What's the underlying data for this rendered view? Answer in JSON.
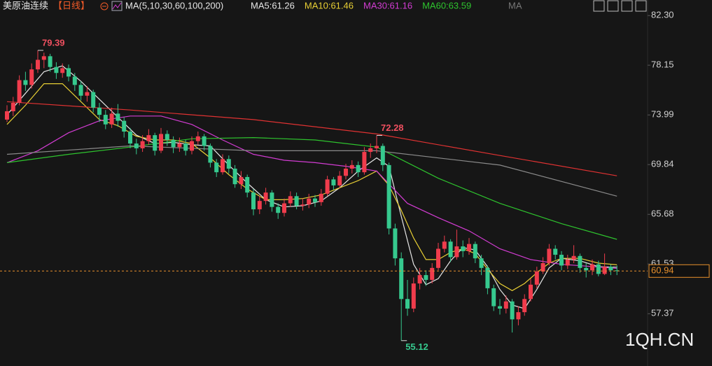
{
  "chart_data": {
    "type": "candlestick",
    "header": {
      "symbol": "美原油连续",
      "period": "【日线】",
      "ma_params": "MA(5,10,30,60,100,200)",
      "extra": "MA"
    },
    "watermark": "1QH.CN",
    "up_color": "#f03c4c",
    "down_color": "#36c98e",
    "ylim": [
      53.0,
      83.6
    ],
    "yticks": [
      {
        "value": 82.3,
        "label": "82.30"
      },
      78.15,
      73.99,
      69.84,
      65.68,
      61.53,
      57.37
    ],
    "open": [
      73.6,
      74.3,
      75.0,
      76.9,
      76.5,
      77.8,
      78.6,
      78.9,
      78.0,
      77.5,
      77.9,
      77.2,
      76.5,
      75.6,
      75.9,
      74.6,
      74.0,
      73.2,
      74.1,
      73.5,
      72.6,
      71.6,
      71.2,
      71.8,
      72.3,
      71.0,
      72.4,
      71.9,
      71.3,
      71.6,
      71.0,
      71.8,
      72.2,
      71.4,
      70.0,
      69.2,
      70.3,
      69.5,
      68.2,
      68.8,
      67.5,
      66.1,
      66.8,
      67.5,
      66.3,
      65.8,
      66.6,
      67.2,
      66.4,
      66.5,
      67.0,
      66.7,
      67.4,
      68.6,
      68.1,
      68.9,
      69.5,
      69.8,
      69.2,
      70.9,
      71.2,
      71.4,
      69.8,
      64.5,
      62.0,
      58.6,
      57.8,
      59.9,
      60.6,
      60.2,
      61.2,
      62.8,
      63.4,
      62.1,
      63.0,
      62.6,
      63.2,
      62.0,
      61.2,
      59.5,
      58.0,
      57.8,
      58.4,
      56.9,
      57.5,
      58.6,
      59.8,
      60.9,
      61.6,
      62.8,
      62.3,
      61.4,
      61.9,
      62.2,
      61.2,
      61.0,
      61.5,
      60.7,
      61.3,
      61.0
    ],
    "high": [
      74.8,
      75.5,
      77.3,
      77.6,
      78.3,
      79.39,
      79.2,
      79.1,
      78.4,
      78.3,
      78.2,
      77.5,
      76.8,
      76.4,
      76.1,
      75.0,
      74.4,
      74.6,
      74.9,
      73.8,
      72.9,
      72.0,
      72.3,
      72.8,
      72.5,
      72.9,
      72.7,
      72.2,
      72.1,
      71.9,
      72.2,
      72.6,
      72.4,
      71.6,
      70.3,
      70.7,
      70.6,
      69.8,
      69.3,
      69.0,
      67.8,
      67.2,
      67.9,
      67.7,
      66.6,
      67.0,
      67.6,
      67.5,
      67.0,
      67.4,
      67.3,
      67.8,
      68.9,
      68.8,
      69.3,
      69.9,
      70.2,
      70.1,
      71.3,
      71.6,
      72.28,
      71.6,
      70.0,
      64.9,
      62.5,
      60.2,
      60.4,
      61.2,
      61.0,
      61.6,
      63.3,
      63.9,
      63.6,
      64.4,
      63.5,
      63.7,
      63.4,
      62.3,
      61.4,
      59.8,
      58.6,
      58.9,
      58.6,
      58.0,
      59.0,
      60.3,
      61.3,
      62.1,
      63.2,
      63.1,
      62.6,
      62.3,
      63.1,
      62.4,
      61.6,
      61.9,
      61.8,
      62.4,
      61.5,
      61.4
    ],
    "low": [
      73.4,
      73.9,
      74.8,
      76.0,
      76.2,
      77.5,
      77.9,
      77.6,
      77.0,
      77.1,
      76.8,
      76.0,
      75.2,
      75.1,
      74.2,
      73.4,
      72.8,
      72.9,
      73.0,
      72.1,
      71.2,
      70.7,
      70.9,
      71.5,
      70.6,
      70.8,
      71.4,
      70.8,
      70.9,
      70.6,
      70.7,
      71.5,
      71.0,
      69.6,
      68.8,
      69.0,
      69.1,
      67.9,
      67.8,
      67.1,
      65.6,
      65.7,
      66.5,
      65.9,
      65.3,
      65.5,
      66.3,
      66.1,
      66.0,
      66.2,
      66.3,
      66.4,
      67.2,
      67.7,
      67.9,
      68.6,
      69.1,
      68.8,
      69.0,
      70.4,
      70.8,
      69.3,
      64.0,
      61.4,
      55.12,
      57.2,
      57.5,
      59.4,
      59.7,
      59.9,
      61.0,
      62.5,
      61.7,
      61.9,
      62.1,
      62.3,
      61.6,
      60.6,
      59.0,
      57.6,
      57.3,
      57.4,
      55.8,
      56.4,
      57.2,
      58.4,
      59.5,
      60.7,
      61.4,
      61.9,
      61.0,
      61.1,
      61.6,
      60.8,
      60.4,
      60.6,
      60.5,
      60.6,
      60.6,
      60.6
    ],
    "close": [
      74.3,
      75.0,
      76.9,
      76.5,
      77.8,
      78.6,
      78.9,
      78.0,
      77.5,
      77.9,
      77.2,
      76.5,
      75.6,
      75.9,
      74.6,
      74.0,
      73.2,
      74.1,
      73.5,
      72.6,
      71.6,
      71.2,
      71.8,
      72.3,
      71.0,
      72.4,
      71.9,
      71.3,
      71.6,
      71.0,
      71.8,
      72.2,
      71.4,
      70.0,
      69.2,
      70.3,
      69.5,
      68.2,
      68.8,
      67.5,
      66.1,
      66.8,
      67.5,
      66.3,
      65.8,
      66.6,
      67.2,
      66.4,
      66.5,
      67.0,
      66.7,
      67.4,
      68.6,
      68.1,
      68.9,
      69.5,
      69.8,
      69.2,
      70.9,
      71.2,
      71.4,
      69.8,
      64.5,
      62.0,
      58.6,
      57.8,
      59.9,
      60.6,
      60.2,
      61.2,
      62.8,
      63.4,
      62.1,
      63.0,
      62.6,
      63.2,
      62.0,
      61.2,
      59.5,
      58.0,
      57.8,
      58.4,
      56.9,
      57.5,
      58.6,
      59.8,
      60.9,
      61.6,
      62.8,
      62.3,
      61.4,
      61.9,
      62.2,
      61.2,
      61.0,
      61.5,
      60.7,
      61.3,
      61.0,
      60.94
    ],
    "annotations": [
      {
        "index": 5,
        "of": "high"
      },
      {
        "index": 60,
        "of": "high"
      },
      {
        "index": 64,
        "of": "low"
      }
    ],
    "series": [
      {
        "name": "MA5:61.26",
        "color": "#e6e6e6",
        "x": [
          0,
          3,
          6,
          9,
          12,
          15,
          18,
          21,
          24,
          27,
          30,
          33,
          36,
          39,
          42,
          45,
          48,
          51,
          54,
          57,
          60,
          62,
          64,
          66,
          68,
          70,
          72,
          74,
          76,
          78,
          80,
          82,
          84,
          86,
          88,
          90,
          93,
          96,
          99
        ],
        "values": [
          74.0,
          75.8,
          77.6,
          78.1,
          76.8,
          75.3,
          73.8,
          72.3,
          71.6,
          71.7,
          71.5,
          71.4,
          69.8,
          68.3,
          66.9,
          66.3,
          66.4,
          66.8,
          67.9,
          69.3,
          70.4,
          69.7,
          65.5,
          61.5,
          59.8,
          60.3,
          61.8,
          62.9,
          62.7,
          61.3,
          59.4,
          58.1,
          57.8,
          59.4,
          61.2,
          62.0,
          61.8,
          61.3,
          61.26
        ]
      },
      {
        "name": "MA10:61.46",
        "color": "#e8cf34",
        "x": [
          0,
          3,
          6,
          9,
          12,
          15,
          18,
          21,
          24,
          27,
          30,
          33,
          36,
          39,
          42,
          45,
          48,
          51,
          54,
          57,
          60,
          62,
          64,
          66,
          68,
          70,
          72,
          74,
          76,
          78,
          80,
          82,
          84,
          86,
          88,
          90,
          93,
          96,
          99
        ],
        "values": [
          73.2,
          74.8,
          76.6,
          76.6,
          75.1,
          73.6,
          73.1,
          72.2,
          71.9,
          71.9,
          71.6,
          70.4,
          69.0,
          67.8,
          66.9,
          66.9,
          67.0,
          67.3,
          67.9,
          68.5,
          69.3,
          68.1,
          66.0,
          63.7,
          61.9,
          61.9,
          62.5,
          62.8,
          62.4,
          61.1,
          59.9,
          59.3,
          59.9,
          60.8,
          61.6,
          62.0,
          62.0,
          61.6,
          61.46
        ]
      },
      {
        "name": "MA30:61.16",
        "color": "#d23cd2",
        "x": [
          0,
          5,
          10,
          15,
          20,
          25,
          30,
          35,
          40,
          45,
          50,
          55,
          60,
          65,
          70,
          75,
          80,
          85,
          90,
          99
        ],
        "values": [
          70.0,
          71.0,
          72.5,
          73.5,
          73.9,
          73.9,
          73.2,
          71.9,
          70.7,
          70.2,
          70.0,
          69.7,
          69.3,
          66.6,
          65.4,
          64.3,
          62.8,
          61.9,
          61.5,
          61.16
        ]
      },
      {
        "name": "MA60:63.59",
        "color": "#2ec42e",
        "x": [
          0,
          10,
          20,
          30,
          40,
          50,
          60,
          70,
          80,
          90,
          99
        ],
        "values": [
          70.0,
          70.7,
          71.3,
          72.0,
          72.1,
          71.9,
          71.3,
          68.7,
          66.6,
          64.9,
          63.59
        ]
      },
      {
        "color": "#8a8a8a",
        "x": [
          0,
          20,
          40,
          60,
          80,
          99
        ],
        "values": [
          70.7,
          71.4,
          71.0,
          71.0,
          69.8,
          67.2
        ]
      },
      {
        "color": "#e03232",
        "x": [
          0,
          20,
          40,
          60,
          80,
          99
        ],
        "values": [
          75.1,
          74.4,
          73.6,
          72.4,
          70.6,
          68.9
        ]
      }
    ]
  }
}
